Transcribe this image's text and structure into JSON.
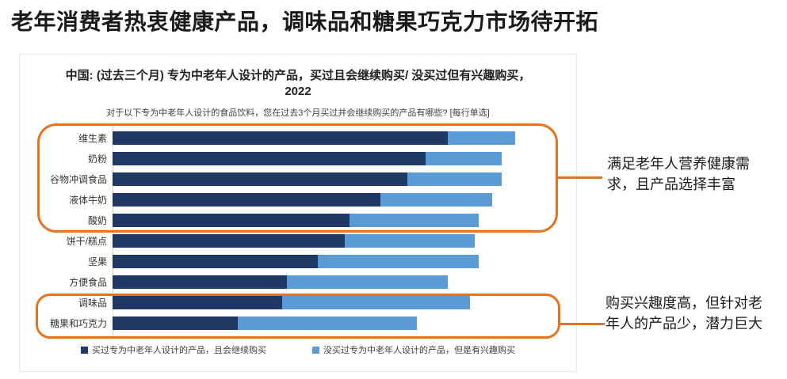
{
  "page": {
    "title": "老年消费者热衷健康产品，调味品和糖果巧克力市场待开拓"
  },
  "colors": {
    "accent": "#E8731E",
    "series_bought": "#1F3864",
    "series_interested": "#5B9BD5",
    "card_border": "#E8E8E8",
    "axis": "#D9D9D9"
  },
  "chart": {
    "title": "中国: (过去三个月) 专为中老年人设计的产品，买过且会继续购买/ 没买过但有兴趣购买，2022",
    "subtitle": "对于以下专为中老年人设计的食品饮料，您在过去3个月买过并会继续购买的产品有哪些? [每行单选]"
  },
  "chart_data": {
    "type": "bar",
    "orientation": "horizontal",
    "stacked": true,
    "title": "中国: (过去三个月) 专为中老年人设计的产品，买过且会继续购买/ 没买过但有兴趣购买，2022",
    "categories": [
      "维生素",
      "奶粉",
      "谷物冲调食品",
      "液体牛奶",
      "酸奶",
      "饼干/糕点",
      "坚果",
      "方便食品",
      "调味品",
      "糖果和巧克力"
    ],
    "series": [
      {
        "name": "买过专为中老年人设计的产品，且会继续购买",
        "color": "#1F3864",
        "values": [
          75,
          70,
          66,
          60,
          53,
          52,
          46,
          39,
          38,
          28
        ]
      },
      {
        "name": "没买过专为中老年人设计的产品，但是有兴趣购买",
        "color": "#5B9BD5",
        "values": [
          15,
          17,
          21,
          25,
          29,
          29,
          36,
          36,
          42,
          40
        ]
      }
    ],
    "xlim": [
      0,
      100
    ],
    "grid": false,
    "legend_position": "bottom"
  },
  "annotations": [
    {
      "text": "满足老年人营养健康需求，且产品选择丰富"
    },
    {
      "text": "购买兴趣度高，但针对老年人的产品少，潜力巨大"
    }
  ]
}
